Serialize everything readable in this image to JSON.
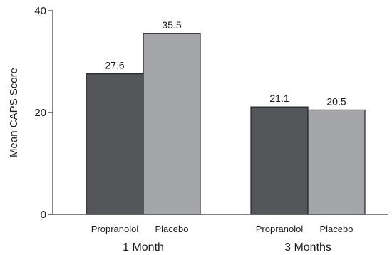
{
  "chart_data": {
    "type": "bar",
    "title": "",
    "xlabel": "",
    "ylabel": "Mean CAPS Score",
    "ylim": [
      0,
      40
    ],
    "yticks": [
      0,
      20,
      40
    ],
    "groups": [
      {
        "label": "1 Month",
        "bars": [
          {
            "label": "Propranolol",
            "value": 27.6,
            "value_label": "27.6"
          },
          {
            "label": "Placebo",
            "value": 35.5,
            "value_label": "35.5"
          }
        ]
      },
      {
        "label": "3 Months",
        "bars": [
          {
            "label": "Propranolol",
            "value": 21.1,
            "value_label": "21.1"
          },
          {
            "label": "Placebo",
            "value": 20.5,
            "value_label": "20.5"
          }
        ]
      }
    ],
    "colors": {
      "Propranolol": "#55565a",
      "Placebo": "#a5a6aa"
    },
    "grid": false,
    "legend": "none"
  }
}
